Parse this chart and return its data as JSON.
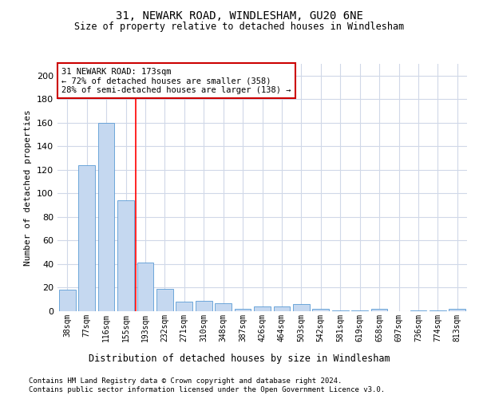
{
  "title1": "31, NEWARK ROAD, WINDLESHAM, GU20 6NE",
  "title2": "Size of property relative to detached houses in Windlesham",
  "xlabel": "Distribution of detached houses by size in Windlesham",
  "ylabel": "Number of detached properties",
  "categories": [
    "38sqm",
    "77sqm",
    "116sqm",
    "155sqm",
    "193sqm",
    "232sqm",
    "271sqm",
    "310sqm",
    "348sqm",
    "387sqm",
    "426sqm",
    "464sqm",
    "503sqm",
    "542sqm",
    "581sqm",
    "619sqm",
    "658sqm",
    "697sqm",
    "736sqm",
    "774sqm",
    "813sqm"
  ],
  "values": [
    18,
    124,
    160,
    94,
    41,
    19,
    8,
    9,
    7,
    2,
    4,
    4,
    6,
    2,
    1,
    1,
    2,
    0,
    1,
    1,
    2
  ],
  "bar_color": "#c5d8f0",
  "bar_edge_color": "#5b9bd5",
  "ylim": [
    0,
    210
  ],
  "yticks": [
    0,
    20,
    40,
    60,
    80,
    100,
    120,
    140,
    160,
    180,
    200
  ],
  "red_line_x": 3.5,
  "annotation_text": "31 NEWARK ROAD: 173sqm\n← 72% of detached houses are smaller (358)\n28% of semi-detached houses are larger (138) →",
  "annotation_box_color": "#ffffff",
  "annotation_box_edge": "#cc0000",
  "footer1": "Contains HM Land Registry data © Crown copyright and database right 2024.",
  "footer2": "Contains public sector information licensed under the Open Government Licence v3.0.",
  "background_color": "#ffffff",
  "grid_color": "#d0d8e8"
}
